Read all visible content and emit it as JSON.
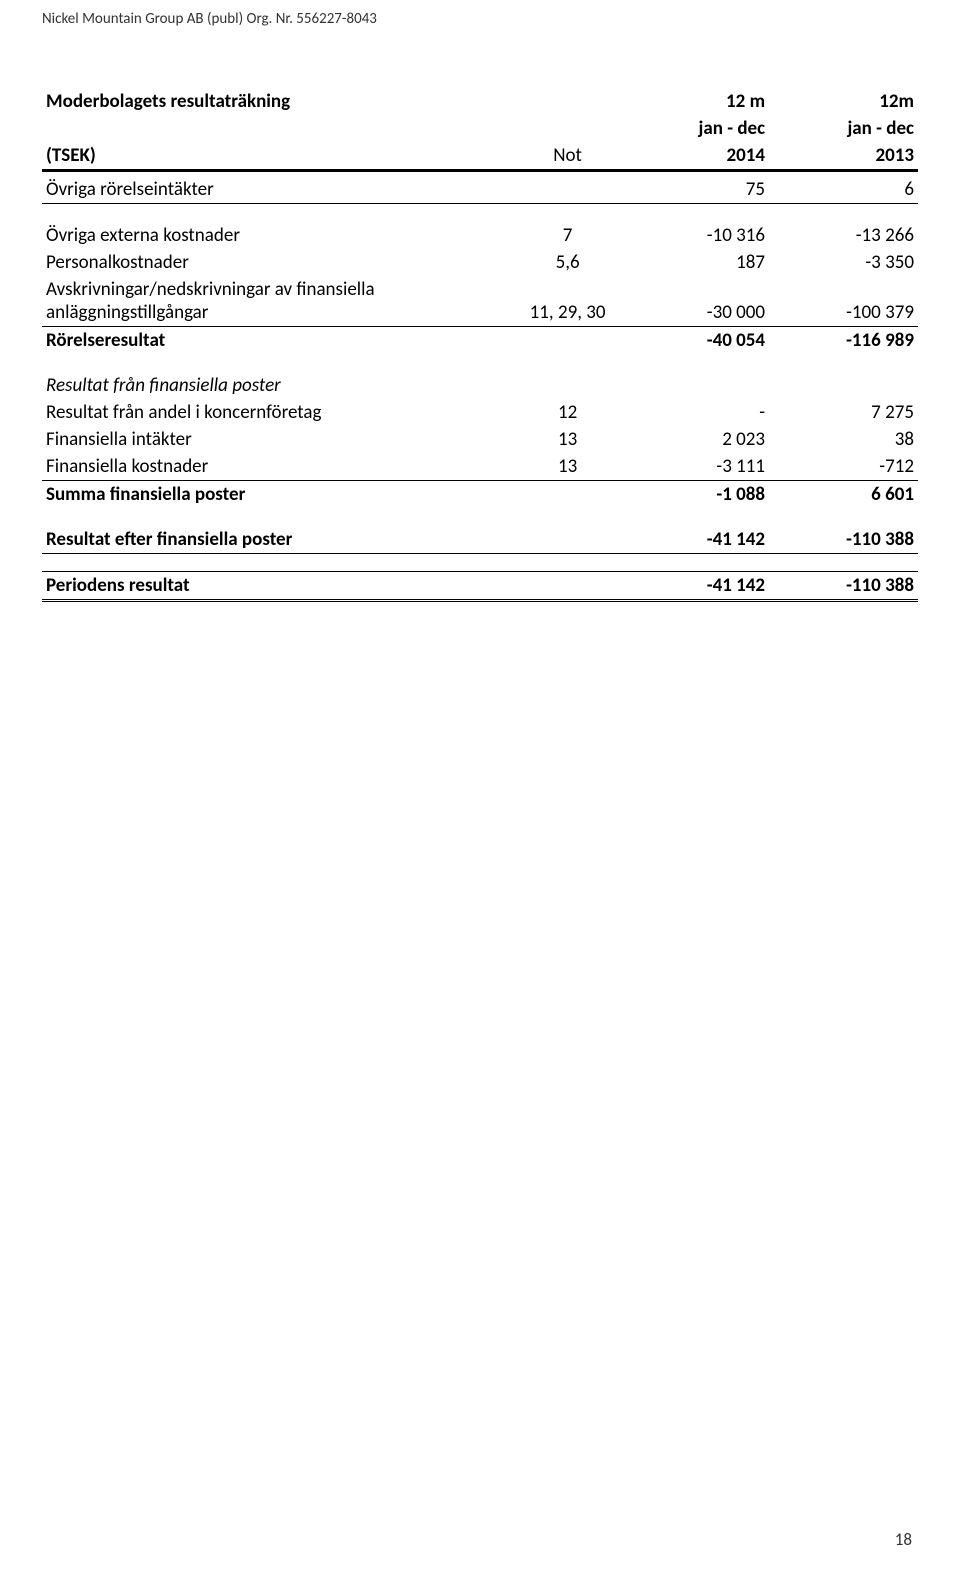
{
  "header": "Nickel Mountain Group AB (publ) Org. Nr. 556227-8043",
  "tbl": {
    "title": "Moderbolagets resultaträkning",
    "h1a": "12 m",
    "h1b": "12m",
    "unit": "(TSEK)",
    "notLabel": "Not",
    "h2a": "jan - dec",
    "h2b": "jan - dec",
    "h3a": "2014",
    "h3b": "2013",
    "r1l": "Övriga rörelseintäkter",
    "r1v1": "75",
    "r1v2": "6",
    "r2l": "Övriga externa kostnader",
    "r2n": "7",
    "r2v1": "-10 316",
    "r2v2": "-13 266",
    "r3l": "Personalkostnader",
    "r3n": "5,6",
    "r3v1": "187",
    "r3v2": "-3 350",
    "r4l": "Avskrivningar/nedskrivningar av finansiella anläggningstillgångar",
    "r4n": "11, 29, 30",
    "r4v1": "-30 000",
    "r4v2": "-100 379",
    "r5l": "Rörelseresultat",
    "r5v1": "-40 054",
    "r5v2": "-116 989",
    "r6l": "Resultat från finansiella poster",
    "r7l": "Resultat från andel i koncernföretag",
    "r7n": "12",
    "r7v1": "-",
    "r7v2": "7 275",
    "r8l": "Finansiella intäkter",
    "r8n": "13",
    "r8v1": "2 023",
    "r8v2": "38",
    "r9l": "Finansiella kostnader",
    "r9n": "13",
    "r9v1": "-3 111",
    "r9v2": "-712",
    "r10l": "Summa finansiella poster",
    "r10v1": "-1 088",
    "r10v2": "6 601",
    "r11l": "Resultat efter finansiella poster",
    "r11v1": "-41 142",
    "r11v2": "-110 388",
    "r12l": "Periodens resultat",
    "r12v1": "-41 142",
    "r12v2": "-110 388"
  },
  "pageNum": "18"
}
